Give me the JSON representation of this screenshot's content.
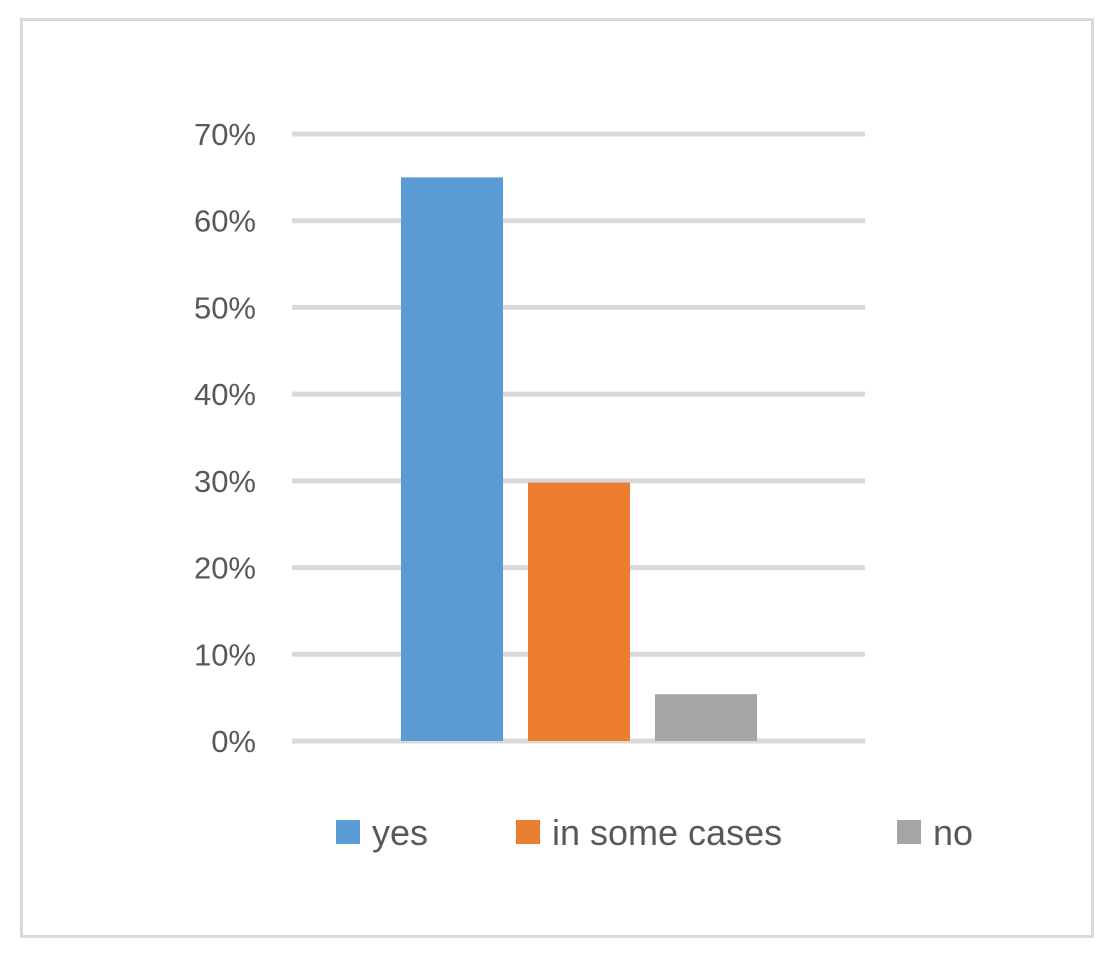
{
  "chart_data": {
    "type": "bar",
    "title": "",
    "xlabel": "",
    "ylabel": "",
    "ylim": [
      0,
      0.7
    ],
    "ytick_values": [
      0,
      0.1,
      0.2,
      0.3,
      0.4,
      0.5,
      0.6,
      0.7
    ],
    "ytick_labels": [
      "0%",
      "10%",
      "20%",
      "30%",
      "40%",
      "50%",
      "60%",
      "70%"
    ],
    "grid": true,
    "legend_position": "bottom",
    "series": [
      {
        "name": "yes",
        "value": 0.65,
        "color": "#5b9bd5"
      },
      {
        "name": "in some cases",
        "value": 0.298,
        "color": "#ed7d31"
      },
      {
        "name": "no",
        "value": 0.054,
        "color": "#a5a5a5"
      }
    ]
  }
}
